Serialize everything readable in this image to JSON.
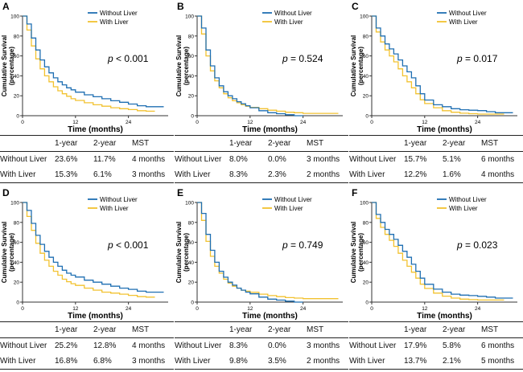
{
  "colors": {
    "without_liver": "#1f6fb2",
    "with_liver": "#f2c230",
    "axis": "#333333"
  },
  "common": {
    "ylabel": "Cumulative Survival\n(percentage)",
    "xlabel": "Time (months)",
    "legend": [
      "Without Liver",
      "With Liver"
    ],
    "yticks": [
      "0",
      "20",
      "40",
      "60",
      "80",
      "100"
    ],
    "xticks": [
      "0",
      "12",
      "24"
    ],
    "table_headers": [
      "",
      "1-year",
      "2-year",
      "MST"
    ]
  },
  "panels": [
    {
      "letter": "A",
      "p_prefix": "p",
      "p_text": " < 0.001",
      "table": [
        [
          "Without Liver",
          "23.6%",
          "11.7%",
          "4 months"
        ],
        [
          "With Liver",
          "15.3%",
          "6.1%",
          "3 months"
        ]
      ]
    },
    {
      "letter": "B",
      "p_prefix": "p",
      "p_text": " = 0.524",
      "table": [
        [
          "Without Liver",
          "8.0%",
          "0.0%",
          "3 months"
        ],
        [
          "With Liver",
          "8.3%",
          "2.3%",
          "2 months"
        ]
      ]
    },
    {
      "letter": "C",
      "p_prefix": "p",
      "p_text": " = 0.017",
      "table": [
        [
          "Without Liver",
          "15.7%",
          "5.1%",
          "6 months"
        ],
        [
          "With Liver",
          "12.2%",
          "1.6%",
          "4 months"
        ]
      ]
    },
    {
      "letter": "D",
      "p_prefix": "p",
      "p_text": " < 0.001",
      "table": [
        [
          "Without Liver",
          "25.2%",
          "12.8%",
          "4 months"
        ],
        [
          "With Liver",
          "16.8%",
          "6.8%",
          "3 months"
        ]
      ]
    },
    {
      "letter": "E",
      "p_prefix": "p",
      "p_text": " = 0.749",
      "table": [
        [
          "Without Liver",
          "8.3%",
          "0.0%",
          "3 months"
        ],
        [
          "With Liver",
          "9.8%",
          "3.5%",
          "2 months"
        ]
      ]
    },
    {
      "letter": "F",
      "p_prefix": "p",
      "p_text": " = 0.023",
      "table": [
        [
          "Without Liver",
          "17.9%",
          "5.8%",
          "6 months"
        ],
        [
          "With Liver",
          "13.7%",
          "2.1%",
          "5 months"
        ]
      ]
    }
  ],
  "chart_data": [
    {
      "type": "line",
      "xlim": [
        0,
        33
      ],
      "ylim": [
        0,
        100
      ],
      "xlabel": "Time (months)",
      "ylabel": "Cumulative Survival (percentage)",
      "legend_position": "top-right",
      "series": [
        {
          "name": "Without Liver",
          "x": [
            0,
            1,
            2,
            3,
            4,
            5,
            6,
            7,
            8,
            9,
            10,
            11,
            12,
            14,
            16,
            18,
            20,
            22,
            24,
            26,
            28,
            30,
            32
          ],
          "y": [
            100,
            92,
            78,
            66,
            56,
            49,
            43,
            38,
            34,
            31,
            28,
            26,
            23.6,
            21,
            19,
            17,
            15,
            13.5,
            11.7,
            10,
            9,
            9,
            9
          ]
        },
        {
          "name": "With Liver",
          "x": [
            0,
            1,
            2,
            3,
            4,
            5,
            6,
            7,
            8,
            9,
            10,
            11,
            12,
            14,
            16,
            18,
            20,
            22,
            24,
            26,
            28,
            30
          ],
          "y": [
            100,
            86,
            70,
            57,
            47,
            40,
            34,
            29,
            25,
            22,
            19.5,
            17,
            15.3,
            13,
            11,
            9.5,
            8,
            7,
            6.1,
            5,
            4.5,
            4.5
          ]
        }
      ]
    },
    {
      "type": "line",
      "xlim": [
        0,
        33
      ],
      "ylim": [
        0,
        100
      ],
      "xlabel": "Time (months)",
      "ylabel": "Cumulative Survival (percentage)",
      "legend_position": "top-right",
      "series": [
        {
          "name": "Without Liver",
          "x": [
            0,
            1,
            2,
            3,
            4,
            5,
            6,
            7,
            8,
            9,
            10,
            11,
            12,
            14,
            16,
            18,
            20,
            22,
            24
          ],
          "y": [
            100,
            88,
            66,
            50,
            38,
            30,
            24,
            20,
            17,
            14,
            12,
            10,
            8,
            5,
            3,
            2,
            1,
            0,
            0
          ]
        },
        {
          "name": "With Liver",
          "x": [
            0,
            1,
            2,
            3,
            4,
            5,
            6,
            7,
            8,
            9,
            10,
            11,
            12,
            14,
            16,
            18,
            20,
            22,
            24,
            26,
            28,
            30,
            32
          ],
          "y": [
            100,
            82,
            60,
            45,
            35,
            28,
            22,
            18,
            15,
            13,
            11,
            9.5,
            8.3,
            7,
            5.5,
            4.5,
            3.5,
            3,
            2.3,
            2.3,
            2.3,
            2.3,
            2.3
          ]
        }
      ]
    },
    {
      "type": "line",
      "xlim": [
        0,
        33
      ],
      "ylim": [
        0,
        100
      ],
      "xlabel": "Time (months)",
      "ylabel": "Cumulative Survival (percentage)",
      "legend_position": "top-right",
      "series": [
        {
          "name": "Without Liver",
          "x": [
            0,
            1,
            2,
            3,
            4,
            5,
            6,
            7,
            8,
            9,
            10,
            11,
            12,
            14,
            16,
            18,
            20,
            22,
            24,
            26,
            28,
            30,
            32
          ],
          "y": [
            100,
            88,
            80,
            72,
            67,
            62,
            56,
            50,
            44,
            38,
            30,
            22,
            15.7,
            11,
            9,
            7,
            6,
            5.5,
            5.1,
            4,
            3,
            3,
            3
          ]
        },
        {
          "name": "With Liver",
          "x": [
            0,
            1,
            2,
            3,
            4,
            5,
            6,
            7,
            8,
            9,
            10,
            11,
            12,
            14,
            16,
            18,
            20,
            22,
            24,
            26,
            28,
            30
          ],
          "y": [
            100,
            84,
            74,
            66,
            60,
            54,
            47,
            40,
            34,
            28,
            22,
            16,
            12.2,
            8,
            5,
            3.5,
            2.5,
            2,
            1.6,
            1.6,
            1.6,
            1.6
          ]
        }
      ]
    },
    {
      "type": "line",
      "xlim": [
        0,
        33
      ],
      "ylim": [
        0,
        100
      ],
      "xlabel": "Time (months)",
      "ylabel": "Cumulative Survival (percentage)",
      "legend_position": "top-right",
      "series": [
        {
          "name": "Without Liver",
          "x": [
            0,
            1,
            2,
            3,
            4,
            5,
            6,
            7,
            8,
            9,
            10,
            11,
            12,
            14,
            16,
            18,
            20,
            22,
            24,
            26,
            28,
            30,
            32
          ],
          "y": [
            100,
            92,
            79,
            67,
            58,
            51,
            45,
            40,
            36,
            32,
            29,
            27,
            25.2,
            22,
            20,
            18,
            16,
            14,
            12.8,
            11,
            10,
            10,
            10
          ]
        },
        {
          "name": "With Liver",
          "x": [
            0,
            1,
            2,
            3,
            4,
            5,
            6,
            7,
            8,
            9,
            10,
            11,
            12,
            14,
            16,
            18,
            20,
            22,
            24,
            26,
            28,
            30
          ],
          "y": [
            100,
            86,
            72,
            59,
            49,
            42,
            36,
            31,
            27,
            23,
            20.5,
            18.5,
            16.8,
            14,
            12,
            10,
            9,
            8,
            6.8,
            5.5,
            5,
            5
          ]
        }
      ]
    },
    {
      "type": "line",
      "xlim": [
        0,
        33
      ],
      "ylim": [
        0,
        100
      ],
      "xlabel": "Time (months)",
      "ylabel": "Cumulative Survival (percentage)",
      "legend_position": "top-right",
      "series": [
        {
          "name": "Without Liver",
          "x": [
            0,
            1,
            2,
            3,
            4,
            5,
            6,
            7,
            8,
            9,
            10,
            11,
            12,
            14,
            16,
            18,
            20,
            22,
            24
          ],
          "y": [
            100,
            89,
            68,
            52,
            40,
            31,
            25,
            20,
            17,
            14,
            12,
            10,
            8.3,
            5,
            3,
            2,
            1,
            0,
            0
          ]
        },
        {
          "name": "With Liver",
          "x": [
            0,
            1,
            2,
            3,
            4,
            5,
            6,
            7,
            8,
            9,
            10,
            11,
            12,
            14,
            16,
            18,
            20,
            22,
            24,
            26,
            28,
            30,
            32
          ],
          "y": [
            100,
            82,
            61,
            46,
            36,
            29,
            23,
            19,
            16,
            14,
            12,
            11,
            9.8,
            8,
            6.5,
            5.5,
            4.5,
            4,
            3.5,
            3.5,
            3.5,
            3.5,
            3.5
          ]
        }
      ]
    },
    {
      "type": "line",
      "xlim": [
        0,
        33
      ],
      "ylim": [
        0,
        100
      ],
      "xlabel": "Time (months)",
      "ylabel": "Cumulative Survival (percentage)",
      "legend_position": "top-right",
      "series": [
        {
          "name": "Without Liver",
          "x": [
            0,
            1,
            2,
            3,
            4,
            5,
            6,
            7,
            8,
            9,
            10,
            11,
            12,
            14,
            16,
            18,
            20,
            22,
            24,
            26,
            28,
            30,
            32
          ],
          "y": [
            100,
            88,
            80,
            73,
            68,
            63,
            57,
            51,
            45,
            38,
            31,
            24,
            17.9,
            13,
            10,
            8,
            7,
            6.5,
            5.8,
            5,
            4,
            4,
            4
          ]
        },
        {
          "name": "With Liver",
          "x": [
            0,
            1,
            2,
            3,
            4,
            5,
            6,
            7,
            8,
            9,
            10,
            11,
            12,
            14,
            16,
            18,
            20,
            22,
            24,
            26,
            28,
            30
          ],
          "y": [
            100,
            84,
            75,
            68,
            62,
            56,
            49,
            42,
            36,
            30,
            24,
            18,
            13.7,
            9,
            6,
            4,
            3,
            2.5,
            2.1,
            2.1,
            2.1,
            2.1
          ]
        }
      ]
    }
  ]
}
